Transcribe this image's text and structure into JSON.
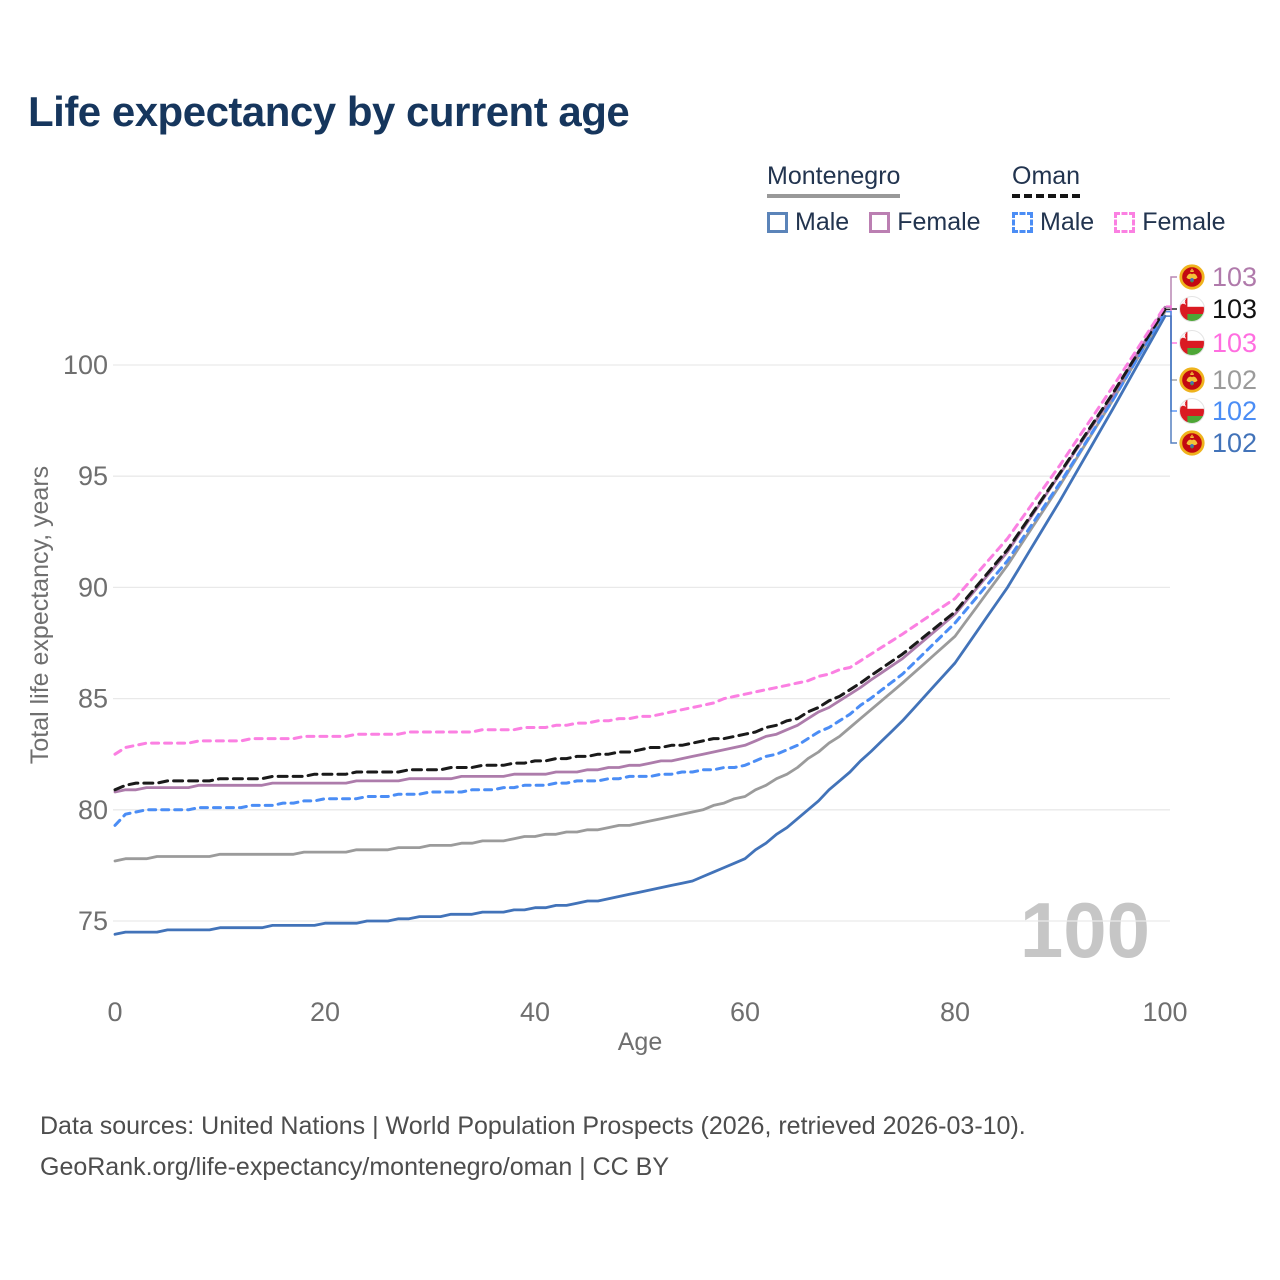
{
  "title": "Life expectancy by current age",
  "legend": {
    "groups": [
      {
        "name": "Montenegro",
        "line_style": "solid",
        "underline_color": "#999999",
        "items": [
          {
            "label": "Male",
            "color": "#5b84b9",
            "dashed": false
          },
          {
            "label": "Female",
            "color": "#bb7fb2",
            "dashed": false
          }
        ]
      },
      {
        "name": "Oman",
        "line_style": "dashed",
        "underline_color": "#141414",
        "items": [
          {
            "label": "Male",
            "color": "#4b8df5",
            "dashed": true
          },
          {
            "label": "Female",
            "color": "#fb80e2",
            "dashed": true
          }
        ]
      }
    ]
  },
  "chart_data": {
    "type": "line",
    "title": "Life expectancy by current age",
    "xlabel": "Age",
    "ylabel": "Total life expectancy, years",
    "xlim": [
      0,
      100
    ],
    "ylim": [
      73,
      103.5
    ],
    "xticks": [
      0,
      20,
      40,
      60,
      80,
      100
    ],
    "yticks": [
      75,
      80,
      85,
      90,
      95,
      100
    ],
    "grid": "horizontal",
    "legend_position": "top-right",
    "watermark": "100",
    "x_anchors": [
      0,
      1,
      3,
      5,
      10,
      15,
      20,
      25,
      30,
      35,
      40,
      45,
      50,
      55,
      60,
      65,
      70,
      75,
      80,
      85,
      90,
      95,
      100
    ],
    "series": [
      {
        "name": "Montenegro Male",
        "country": "Montenegro",
        "sex": "Male",
        "color": "#4273b9",
        "dash": null,
        "values": [
          74.4,
          74.45,
          74.5,
          74.55,
          74.65,
          74.75,
          74.85,
          75.0,
          75.2,
          75.35,
          75.55,
          75.85,
          76.25,
          76.8,
          77.8,
          79.6,
          81.7,
          84.0,
          86.6,
          90.0,
          93.9,
          98.0,
          102.2
        ],
        "end_value": "102"
      },
      {
        "name": "Montenegro (both sexes)",
        "country": "Montenegro",
        "sex": "Both",
        "color": "#9b9b9b",
        "dash": null,
        "values": [
          77.65,
          77.75,
          77.8,
          77.9,
          77.95,
          78.0,
          78.1,
          78.2,
          78.35,
          78.55,
          78.8,
          79.05,
          79.4,
          79.9,
          80.6,
          81.9,
          83.7,
          85.7,
          87.8,
          91.0,
          94.6,
          98.4,
          102.4
        ],
        "end_value": "102"
      },
      {
        "name": "Oman Male",
        "country": "Oman",
        "sex": "Male",
        "color": "#4b8df5",
        "dash": "7 6",
        "values": [
          79.3,
          79.8,
          79.95,
          80.0,
          80.1,
          80.2,
          80.45,
          80.6,
          80.75,
          80.9,
          81.1,
          81.3,
          81.5,
          81.7,
          82.0,
          82.9,
          84.3,
          86.1,
          88.4,
          91.2,
          94.7,
          98.4,
          102.4
        ],
        "end_value": "102"
      },
      {
        "name": "Montenegro Female",
        "country": "Montenegro",
        "sex": "Female",
        "color": "#ad7cab",
        "dash": null,
        "values": [
          80.8,
          80.9,
          80.95,
          81.0,
          81.1,
          81.15,
          81.2,
          81.3,
          81.4,
          81.5,
          81.6,
          81.75,
          82.0,
          82.4,
          82.9,
          83.8,
          85.2,
          86.8,
          88.8,
          91.6,
          95.1,
          98.6,
          102.6
        ],
        "end_value": "103"
      },
      {
        "name": "Oman (both sexes)",
        "country": "Oman",
        "sex": "Both",
        "color": "#1a1a1a",
        "dash": "9 6",
        "values": [
          80.9,
          81.1,
          81.2,
          81.25,
          81.35,
          81.45,
          81.6,
          81.7,
          81.8,
          81.95,
          82.15,
          82.4,
          82.7,
          83.0,
          83.4,
          84.1,
          85.4,
          87.0,
          88.9,
          91.7,
          95.15,
          98.7,
          102.5
        ],
        "end_value": "103"
      },
      {
        "name": "Oman Female",
        "country": "Oman",
        "sex": "Female",
        "color": "#fb80e2",
        "dash": "7 6",
        "values": [
          82.5,
          82.8,
          82.95,
          83.0,
          83.1,
          83.2,
          83.3,
          83.4,
          83.5,
          83.55,
          83.7,
          83.9,
          84.15,
          84.6,
          85.2,
          85.7,
          86.4,
          87.9,
          89.5,
          92.2,
          95.5,
          99.0,
          102.65
        ],
        "end_value": "103"
      }
    ],
    "end_labels": [
      {
        "series": "Montenegro Female",
        "flag": "montenegro",
        "value": "103",
        "color": "#b07aab"
      },
      {
        "series": "Oman (both sexes)",
        "flag": "oman",
        "value": "103",
        "color": "#111111"
      },
      {
        "series": "Oman Female",
        "flag": "oman",
        "value": "103",
        "color": "#ff6ee0"
      },
      {
        "series": "Montenegro (both sexes)",
        "flag": "montenegro",
        "value": "102",
        "color": "#9b9b9b"
      },
      {
        "series": "Oman Male",
        "flag": "oman",
        "value": "102",
        "color": "#4b8df5"
      },
      {
        "series": "Montenegro Male",
        "flag": "montenegro",
        "value": "102",
        "color": "#4273b9"
      }
    ]
  },
  "footer": {
    "line1": "Data sources: United Nations | World Population Prospects (2026, retrieved 2026-03-10).",
    "line2": "GeoRank.org/life-expectancy/montenegro/oman | CC BY"
  },
  "colors": {
    "title": "#16365d",
    "tick_label": "#6f6f6f",
    "gridline": "#e9e9e9",
    "watermark": "#c6c6c6",
    "footer_text": "#4d4d4d",
    "legend_text": "#22344f"
  }
}
